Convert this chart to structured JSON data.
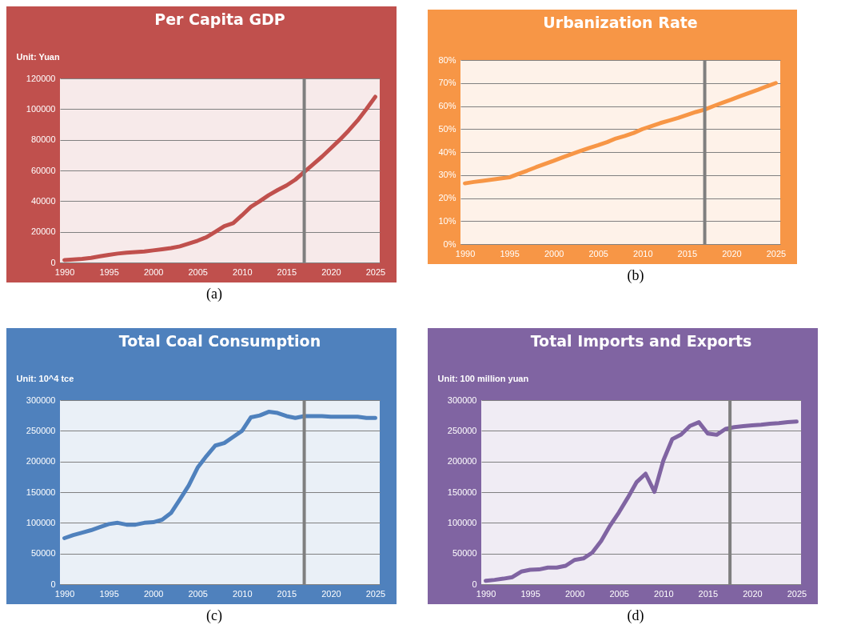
{
  "chart_data": [
    {
      "type": "line",
      "title": "Per Capita GDP",
      "ylabel": "Unit: Yuan",
      "annotations": [
        "(a)"
      ],
      "grid": "y",
      "xlim": [
        1989.5,
        2025.5
      ],
      "xticks": [
        1990,
        1995,
        2000,
        2005,
        2010,
        2015,
        2020,
        2025
      ],
      "ylim": [
        0,
        120000
      ],
      "yticks": [
        0,
        20000,
        40000,
        60000,
        80000,
        100000,
        120000
      ],
      "ref_lines": [
        {
          "axis": "x",
          "value": 2017,
          "color": "#7f7f7f"
        }
      ],
      "x": [
        1990,
        1991,
        1992,
        1993,
        1994,
        1995,
        1996,
        1997,
        1998,
        1999,
        2000,
        2001,
        2002,
        2003,
        2004,
        2005,
        2006,
        2007,
        2008,
        2009,
        2010,
        2011,
        2012,
        2013,
        2014,
        2015,
        2016,
        2017,
        2018,
        2019,
        2020,
        2021,
        2022,
        2023,
        2024,
        2025
      ],
      "series": [
        {
          "color": "#c0504d",
          "values": [
            1600,
            1900,
            2300,
            3000,
            4000,
            5000,
            5800,
            6400,
            6800,
            7200,
            7900,
            8600,
            9400,
            10500,
            12300,
            14200,
            16500,
            20000,
            23700,
            25600,
            30800,
            36300,
            40000,
            43900,
            47200,
            50200,
            54000,
            59000,
            64000,
            69000,
            74500,
            80000,
            86000,
            92500,
            100000,
            108000
          ]
        }
      ]
    },
    {
      "type": "line",
      "title": "Urbanization Rate",
      "annotations": [
        "(b)"
      ],
      "grid": "y",
      "xlim": [
        1989.5,
        2025.5
      ],
      "xticks": [
        1990,
        1995,
        2000,
        2005,
        2010,
        2015,
        2020,
        2025
      ],
      "ylim": [
        0,
        80
      ],
      "yticks": [
        {
          "value": 0,
          "label": "0%"
        },
        {
          "value": 10,
          "label": "10%"
        },
        {
          "value": 20,
          "label": "20%"
        },
        {
          "value": 30,
          "label": "30%"
        },
        {
          "value": 40,
          "label": "40%"
        },
        {
          "value": 50,
          "label": "50%"
        },
        {
          "value": 60,
          "label": "60%"
        },
        {
          "value": 70,
          "label": "70%"
        },
        {
          "value": 80,
          "label": "80%"
        }
      ],
      "ref_lines": [
        {
          "axis": "x",
          "value": 2017,
          "color": "#7f7f7f"
        }
      ],
      "x": [
        1990,
        1991,
        1992,
        1993,
        1994,
        1995,
        1996,
        1997,
        1998,
        1999,
        2000,
        2001,
        2002,
        2003,
        2004,
        2005,
        2006,
        2007,
        2008,
        2009,
        2010,
        2011,
        2012,
        2013,
        2014,
        2015,
        2016,
        2017,
        2018,
        2019,
        2020,
        2021,
        2022,
        2023,
        2024,
        2025
      ],
      "series": [
        {
          "color": "#f79646",
          "values": [
            26.4,
            27,
            27.5,
            28,
            28.5,
            29,
            30.5,
            31.9,
            33.4,
            34.8,
            36.2,
            37.7,
            39.1,
            40.5,
            41.8,
            43,
            44.3,
            45.9,
            47,
            48.3,
            50,
            51.3,
            52.6,
            53.7,
            54.8,
            56.1,
            57.4,
            58.5,
            60,
            61.4,
            62.8,
            64.3,
            65.7,
            67.1,
            68.6,
            70
          ]
        }
      ]
    },
    {
      "type": "line",
      "title": "Total Coal Consumption",
      "ylabel": "Unit: 10^4 tce",
      "annotations": [
        "(c)"
      ],
      "grid": "y",
      "xlim": [
        1989.5,
        2025.5
      ],
      "xticks": [
        1990,
        1995,
        2000,
        2005,
        2010,
        2015,
        2020,
        2025
      ],
      "ylim": [
        0,
        300000
      ],
      "yticks": [
        0,
        50000,
        100000,
        150000,
        200000,
        250000,
        300000
      ],
      "ref_lines": [
        {
          "axis": "x",
          "value": 2017,
          "color": "#7f7f7f"
        }
      ],
      "x": [
        1990,
        1991,
        1992,
        1993,
        1994,
        1995,
        1996,
        1997,
        1998,
        1999,
        2000,
        2001,
        2002,
        2003,
        2004,
        2005,
        2006,
        2007,
        2008,
        2009,
        2010,
        2011,
        2012,
        2013,
        2014,
        2015,
        2016,
        2017,
        2018,
        2019,
        2020,
        2021,
        2022,
        2023,
        2024,
        2025
      ],
      "series": [
        {
          "color": "#4f81bd",
          "values": [
            75000,
            80000,
            84000,
            88000,
            93000,
            98000,
            100000,
            97000,
            97000,
            100000,
            101000,
            105000,
            116000,
            138000,
            161000,
            190000,
            209000,
            226000,
            230000,
            240000,
            250000,
            272000,
            275000,
            281000,
            279000,
            274000,
            271000,
            274000,
            274000,
            274000,
            273000,
            273000,
            273000,
            273000,
            271000,
            271000
          ]
        }
      ]
    },
    {
      "type": "line",
      "title": "Total Imports and Exports",
      "ylabel": "Unit: 100 million yuan",
      "annotations": [
        "(d)"
      ],
      "grid": "y",
      "xlim": [
        1989.5,
        2025.5
      ],
      "xticks": [
        1990,
        1995,
        2000,
        2005,
        2010,
        2015,
        2020,
        2025
      ],
      "ylim": [
        0,
        300000
      ],
      "yticks": [
        0,
        50000,
        100000,
        150000,
        200000,
        250000,
        300000
      ],
      "ref_lines": [
        {
          "axis": "x",
          "value": 2017.5,
          "color": "#7f7f7f"
        }
      ],
      "x": [
        1990,
        1991,
        1992,
        1993,
        1994,
        1995,
        1996,
        1997,
        1998,
        1999,
        2000,
        2001,
        2002,
        2003,
        2004,
        2005,
        2006,
        2007,
        2008,
        2009,
        2010,
        2011,
        2012,
        2013,
        2014,
        2015,
        2016,
        2017,
        2018,
        2019,
        2020,
        2021,
        2022,
        2023,
        2024,
        2025
      ],
      "series": [
        {
          "color": "#8064a2",
          "values": [
            5500,
            7000,
            9000,
            11500,
            20500,
            23500,
            24000,
            27000,
            27000,
            30000,
            39500,
            42000,
            51500,
            70500,
            95500,
            117000,
            141000,
            166500,
            180000,
            150500,
            201500,
            236500,
            244000,
            258000,
            264000,
            245500,
            243500,
            253000,
            256000,
            257500,
            259000,
            260000,
            261500,
            262500,
            264000,
            265000
          ]
        }
      ]
    }
  ]
}
